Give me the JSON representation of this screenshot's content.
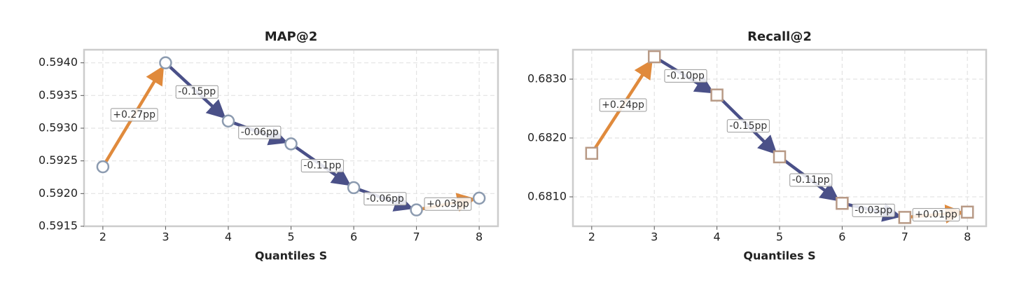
{
  "chart_data": [
    {
      "type": "arrow-line",
      "title": "MAP@2",
      "xlabel": "Quantiles S",
      "x": [
        2,
        3,
        4,
        5,
        6,
        7,
        8
      ],
      "values": [
        0.59241,
        0.594,
        0.59311,
        0.59276,
        0.59209,
        0.59175,
        0.59193
      ],
      "annotations": [
        "+0.27pp",
        "-0.15pp",
        "-0.06pp",
        "-0.11pp",
        "-0.06pp",
        "+0.03pp"
      ],
      "marker": "circle",
      "marker_color": "#8c9bb0",
      "increase_color": "#e08a3c",
      "decrease_color": "#4a5088",
      "xlim": [
        1.7,
        8.3
      ],
      "xticks": [
        2,
        3,
        4,
        5,
        6,
        7,
        8
      ],
      "ylim": [
        0.5915,
        0.5942
      ],
      "yticks": [
        0.5915,
        {
          "value": 0.592,
          "label": "0.5920"
        },
        0.5925,
        {
          "value": 0.593,
          "label": "0.5930"
        },
        0.5935,
        {
          "value": 0.594,
          "label": "0.5940"
        }
      ],
      "grid": true
    },
    {
      "type": "arrow-line",
      "title": "Recall@2",
      "xlabel": "Quantiles S",
      "x": [
        2,
        3,
        4,
        5,
        6,
        7,
        8
      ],
      "values": [
        0.68174,
        0.68338,
        0.68273,
        0.68168,
        0.68089,
        0.68065,
        0.68074
      ],
      "annotations": [
        "+0.24pp",
        "-0.10pp",
        "-0.15pp",
        "-0.11pp",
        "-0.03pp",
        "+0.01pp"
      ],
      "marker": "square",
      "marker_color": "#b89a86",
      "increase_color": "#e08a3c",
      "decrease_color": "#4a5088",
      "xlim": [
        1.7,
        8.3
      ],
      "xticks": [
        2,
        3,
        4,
        5,
        6,
        7,
        8
      ],
      "ylim": [
        0.6805,
        0.6835
      ],
      "yticks": [
        {
          "value": 0.681,
          "label": "0.6810"
        },
        {
          "value": 0.682,
          "label": "0.6820"
        },
        {
          "value": 0.683,
          "label": "0.6830"
        }
      ],
      "grid": true
    }
  ]
}
